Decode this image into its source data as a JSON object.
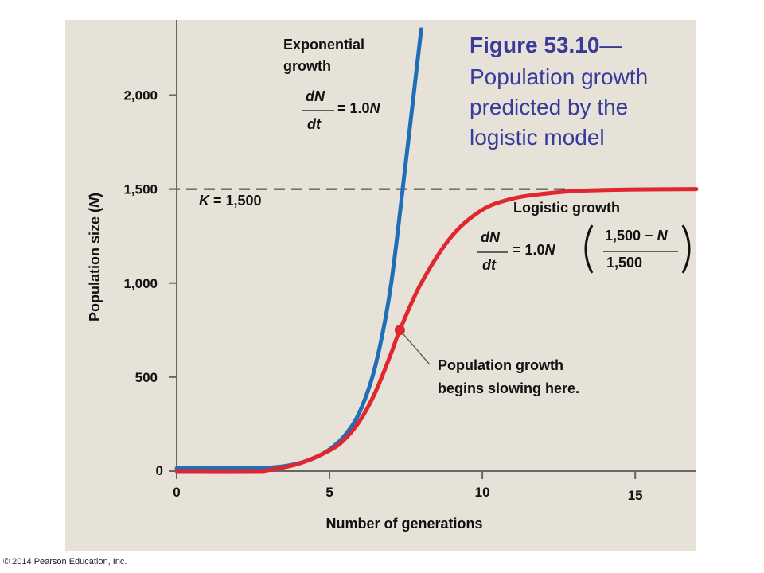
{
  "chart_data": {
    "type": "line",
    "title_number": "Figure 53.10",
    "title_dash": "—",
    "title_lines": [
      "Population growth",
      "predicted by the",
      "logistic model"
    ],
    "xlabel": "Number of generations",
    "ylabel_prefix": "Population size (",
    "ylabel_var": "N",
    "ylabel_suffix": ")",
    "xlim": [
      0,
      17
    ],
    "ylim": [
      0,
      2400
    ],
    "x_ticks": [
      {
        "value": 0,
        "label": "0"
      },
      {
        "value": 5,
        "label": "5"
      },
      {
        "value": 10,
        "label": "10"
      },
      {
        "value": 15,
        "label": "15"
      }
    ],
    "y_ticks": [
      {
        "value": 0,
        "label": "0"
      },
      {
        "value": 500,
        "label": "500"
      },
      {
        "value": 1000,
        "label": "1,000"
      },
      {
        "value": 1500,
        "label": "1,500"
      },
      {
        "value": 2000,
        "label": "2,000"
      }
    ],
    "grid": false,
    "carrying_capacity": {
      "value": 1500,
      "var": "K",
      "label": " = 1,500"
    },
    "series": [
      {
        "name": "Exponential growth",
        "color": "#1f6fb8",
        "x": [
          0,
          2.5,
          3,
          3.5,
          4,
          4.5,
          5,
          5.5,
          6,
          6.5,
          7,
          7.5,
          8
        ],
        "y": [
          15,
          15,
          18,
          26,
          42,
          70,
          115,
          190,
          320,
          560,
          980,
          1650,
          2350
        ]
      },
      {
        "name": "Logistic growth",
        "color": "#e0262e",
        "x": [
          0,
          2.5,
          3,
          4,
          5,
          5.5,
          6,
          6.5,
          7,
          7.3,
          8,
          9,
          10,
          11,
          12,
          13,
          14,
          15,
          17
        ],
        "y": [
          0,
          0,
          5,
          40,
          110,
          170,
          270,
          420,
          620,
          750,
          1000,
          1250,
          1390,
          1450,
          1475,
          1490,
          1495,
          1498,
          1500
        ]
      }
    ],
    "marker": {
      "x": 7.3,
      "y": 750,
      "color": "#e0262e"
    },
    "annotations": {
      "exponential": {
        "label_line1": "Exponential",
        "label_line2": "growth",
        "eq_num": "dN",
        "eq_den": "dt",
        "eq_rhs_prefix": "= 1.0",
        "eq_rhs_var": "N"
      },
      "logistic": {
        "label": "Logistic growth",
        "eq_num": "dN",
        "eq_den": "dt",
        "eq_rhs_prefix": "= 1.0",
        "eq_rhs_var": "N",
        "frac_num_prefix": "1,500 − ",
        "frac_num_var": "N",
        "frac_den": "1,500"
      },
      "slowing_line1": "Population growth",
      "slowing_line2": "begins slowing here."
    }
  },
  "copyright": "© 2014 Pearson Education, Inc."
}
